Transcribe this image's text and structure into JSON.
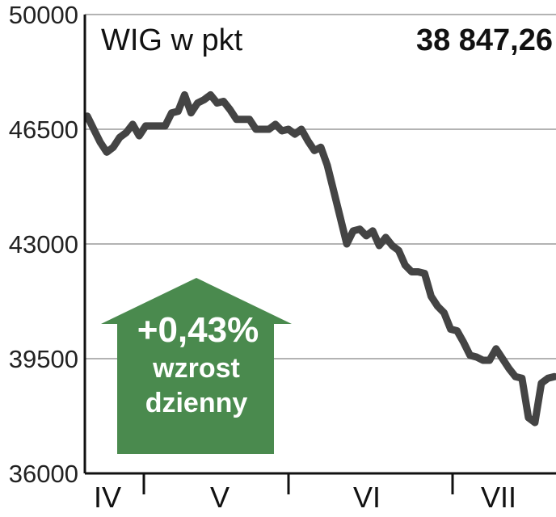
{
  "chart_data": {
    "type": "line",
    "title": "WIG w pkt",
    "last_value": "38 847,26",
    "ylim": [
      36000,
      50000
    ],
    "yticks": [
      "50000",
      "46500",
      "43000",
      "39500",
      "36000"
    ],
    "ytick_values": [
      50000,
      46500,
      43000,
      39500,
      36000
    ],
    "months": [
      "IV",
      "V",
      "VI",
      "VII"
    ],
    "grid": true,
    "line_color": "#444444",
    "badge": {
      "change": "+0,43%",
      "line1": "wzrost",
      "line2": "dzienny",
      "color": "#4a8a4e"
    },
    "series": [
      {
        "values": [
          46900,
          46500,
          46100,
          45800,
          45950,
          46250,
          46400,
          46650,
          46300,
          46600,
          46600,
          46600,
          46600,
          47000,
          47050,
          47550,
          47000,
          47300,
          47400,
          47550,
          47300,
          47350,
          47100,
          46800,
          46800,
          46800,
          46500,
          46500,
          46500,
          46650,
          46450,
          46500,
          46350,
          46500,
          46150,
          45850,
          45950,
          45400,
          44600,
          43800,
          43000,
          43400,
          43450,
          43250,
          43400,
          42950,
          43200,
          42950,
          42800,
          42350,
          42150,
          42150,
          42100,
          41400,
          41100,
          40900,
          40400,
          40350,
          40000,
          39600,
          39550,
          39450,
          39450,
          39800,
          39500,
          39200,
          38950,
          38900,
          37700,
          37550,
          38750,
          38900,
          38950
        ]
      }
    ]
  }
}
